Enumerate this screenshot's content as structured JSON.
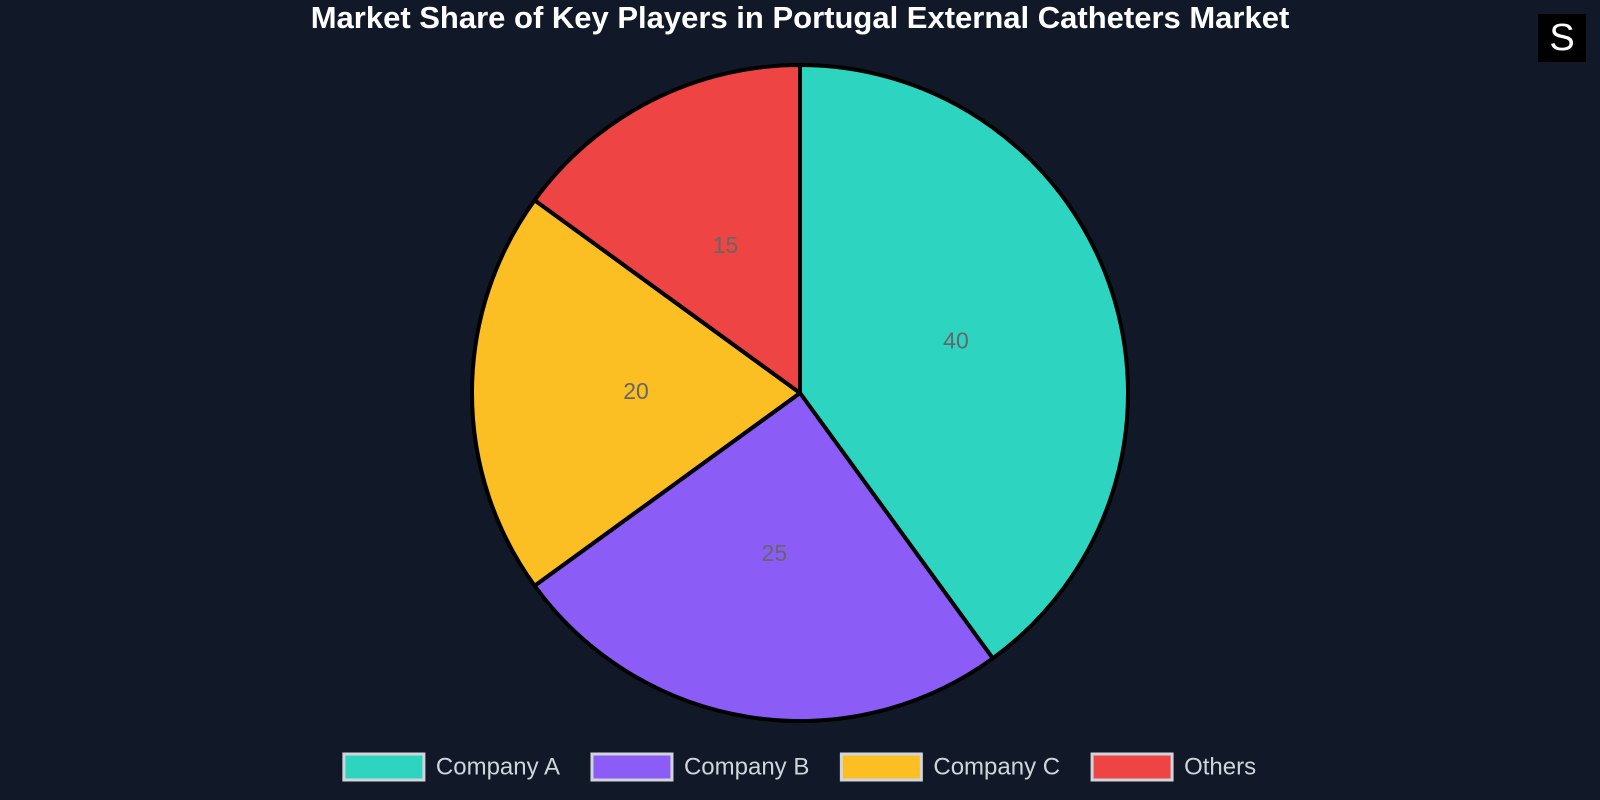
{
  "chart_data": {
    "type": "pie",
    "title": "Market Share of Key Players in Portugal External Catheters Market",
    "categories": [
      "Company A",
      "Company B",
      "Company C",
      "Others"
    ],
    "values": [
      40,
      25,
      20,
      15
    ],
    "colors": [
      "#2dd4bf",
      "#8b5cf6",
      "#fbbf24",
      "#ef4444"
    ],
    "legend": "bottom"
  },
  "logo": "S"
}
